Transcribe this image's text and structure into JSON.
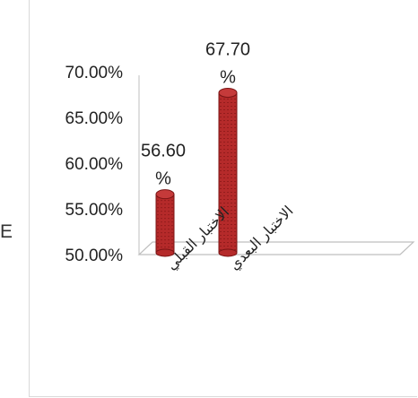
{
  "edge_text": "E",
  "chart_data": {
    "type": "bar",
    "categories": [
      "الاختبار القبلي",
      "الاختبار البعدي"
    ],
    "values": [
      56.6,
      67.7
    ],
    "data_labels": [
      [
        "56.60",
        "%"
      ],
      [
        "67.70",
        "%"
      ]
    ],
    "title": "",
    "xlabel": "",
    "ylabel": "",
    "ylim": [
      50,
      70
    ],
    "yticks": [
      "50.00%",
      "55.00%",
      "60.00%",
      "65.00%",
      "70.00%"
    ],
    "grid": false,
    "bar_color": "#b52a2a",
    "bar_edge_color": "#7a1414"
  }
}
